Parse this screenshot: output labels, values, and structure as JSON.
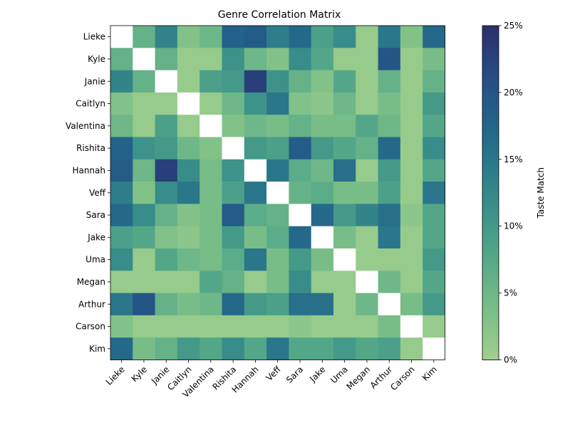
{
  "chart_data": {
    "type": "heatmap",
    "title": "Genre Correlation Matrix",
    "rows": [
      "Lieke",
      "Kyle",
      "Janie",
      "Caitlyn",
      "Valentina",
      "Rishita",
      "Hannah",
      "Veff",
      "Sara",
      "Jake",
      "Uma",
      "Megan",
      "Arthur",
      "Carson",
      "Kim"
    ],
    "columns": [
      "Lieke",
      "Kyle",
      "Janie",
      "Caitlyn",
      "Valentina",
      "Rishita",
      "Hannah",
      "Veff",
      "Sara",
      "Jake",
      "Uma",
      "Megan",
      "Arthur",
      "Carson",
      "Kim"
    ],
    "values": [
      [
        null,
        6,
        13,
        3,
        5,
        18,
        19,
        14,
        17,
        9,
        12,
        1,
        15,
        3,
        17
      ],
      [
        6,
        null,
        6,
        1,
        1,
        11,
        5,
        3,
        12,
        8,
        1,
        1,
        20,
        1,
        4
      ],
      [
        13,
        6,
        null,
        1,
        9,
        10,
        23,
        11,
        6,
        3,
        8,
        1,
        6,
        1,
        6
      ],
      [
        3,
        1,
        1,
        null,
        1,
        5,
        11,
        15,
        3,
        2,
        5,
        1,
        4,
        1,
        10
      ],
      [
        5,
        1,
        9,
        1,
        null,
        3,
        5,
        4,
        6,
        4,
        4,
        8,
        5,
        1,
        8
      ],
      [
        18,
        11,
        10,
        5,
        3,
        null,
        10,
        9,
        19,
        10,
        8,
        6,
        17,
        1,
        12
      ],
      [
        19,
        5,
        23,
        12,
        4,
        11,
        null,
        15,
        7,
        5,
        16,
        1,
        10,
        1,
        8
      ],
      [
        14,
        3,
        12,
        15,
        4,
        9,
        15,
        null,
        6,
        7,
        4,
        4,
        9,
        1,
        15
      ],
      [
        17,
        12,
        6,
        3,
        4,
        19,
        7,
        6,
        null,
        17,
        10,
        13,
        16,
        2,
        8
      ],
      [
        9,
        8,
        3,
        2,
        4,
        10,
        4,
        7,
        17,
        null,
        4,
        1,
        15,
        1,
        8
      ],
      [
        12,
        1,
        8,
        5,
        4,
        7,
        15,
        4,
        10,
        4,
        null,
        1,
        1,
        1,
        10
      ],
      [
        1,
        1,
        1,
        1,
        8,
        6,
        1,
        4,
        12,
        1,
        1,
        null,
        5,
        1,
        8
      ],
      [
        15,
        20,
        6,
        4,
        5,
        17,
        10,
        9,
        16,
        16,
        1,
        5,
        null,
        4,
        10
      ],
      [
        3,
        1,
        1,
        1,
        1,
        1,
        1,
        1,
        2,
        1,
        1,
        1,
        4,
        null,
        1
      ],
      [
        17,
        4,
        6,
        10,
        8,
        12,
        8,
        15,
        8,
        8,
        10,
        8,
        9,
        1,
        null
      ]
    ],
    "value_range": [
      0,
      25
    ],
    "colorbar": {
      "label": "Taste Match",
      "ticks": [
        0,
        5,
        10,
        15,
        20,
        25
      ],
      "tick_labels": [
        "0%",
        "5%",
        "10%",
        "15%",
        "20%",
        "25%"
      ],
      "colormap_stops": [
        "#a0cf8e",
        "#7cbf88",
        "#5aab88",
        "#3f9589",
        "#2c7b8a",
        "#23638a",
        "#264c84",
        "#2c2f6b"
      ]
    },
    "grid": false
  }
}
